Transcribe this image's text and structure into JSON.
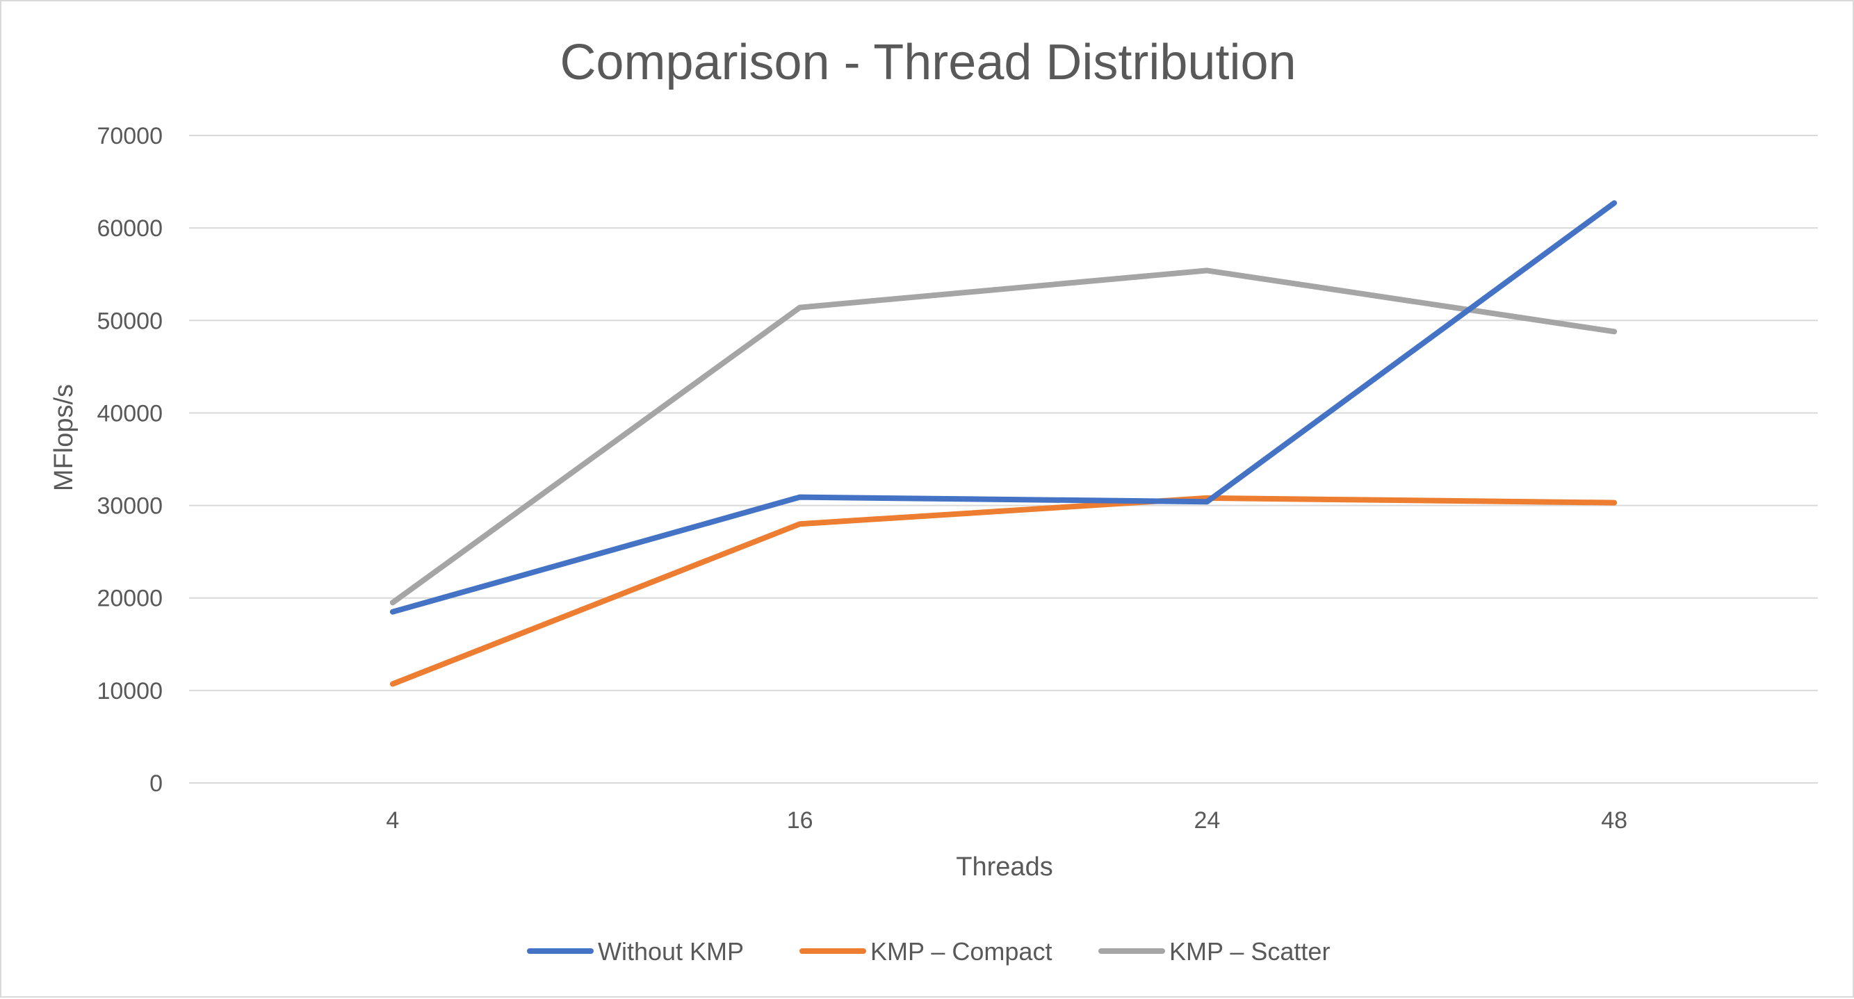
{
  "chart_data": {
    "type": "line",
    "title": "Comparison - Thread Distribution",
    "xlabel": "Threads",
    "ylabel": "MFlops/s",
    "categories": [
      "4",
      "16",
      "24",
      "48"
    ],
    "ylim": [
      0,
      70000
    ],
    "yticks": [
      0,
      10000,
      20000,
      30000,
      40000,
      50000,
      60000,
      70000
    ],
    "grid": true,
    "legend_position": "bottom",
    "series": [
      {
        "name": "Without KMP",
        "color": "#4472C4",
        "values": [
          18500,
          30900,
          30400,
          62700
        ]
      },
      {
        "name": "KMP – Compact",
        "color": "#ED7D31",
        "values": [
          10700,
          28000,
          30800,
          30300
        ]
      },
      {
        "name": "KMP – Scatter",
        "color": "#A5A5A5",
        "values": [
          19500,
          51400,
          55400,
          48800
        ]
      }
    ]
  }
}
